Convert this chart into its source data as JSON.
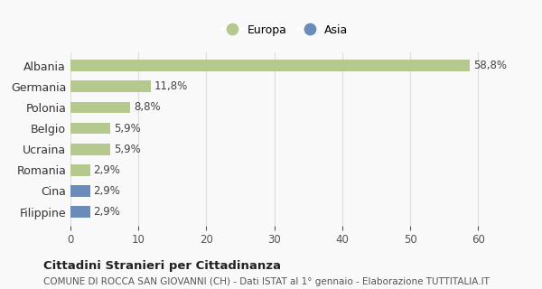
{
  "categories": [
    "Filippine",
    "Cina",
    "Romania",
    "Ucraina",
    "Belgio",
    "Polonia",
    "Germania",
    "Albania"
  ],
  "values": [
    2.9,
    2.9,
    2.9,
    5.9,
    5.9,
    8.8,
    11.8,
    58.8
  ],
  "colors": [
    "#6b8cba",
    "#6b8cba",
    "#b5c98e",
    "#b5c98e",
    "#b5c98e",
    "#b5c98e",
    "#b5c98e",
    "#b5c98e"
  ],
  "labels": [
    "2,9%",
    "2,9%",
    "2,9%",
    "5,9%",
    "5,9%",
    "8,8%",
    "11,8%",
    "58,8%"
  ],
  "legend_europa_color": "#b5c98e",
  "legend_asia_color": "#6b8cba",
  "xlim": [
    0,
    63
  ],
  "xticks": [
    0,
    10,
    20,
    30,
    40,
    50,
    60
  ],
  "title": "Cittadini Stranieri per Cittadinanza",
  "subtitle": "COMUNE DI ROCCA SAN GIOVANNI (CH) - Dati ISTAT al 1° gennaio - Elaborazione TUTTITALIA.IT",
  "bg_color": "#f9f9f9",
  "bar_height": 0.55,
  "grid_color": "#dddddd"
}
